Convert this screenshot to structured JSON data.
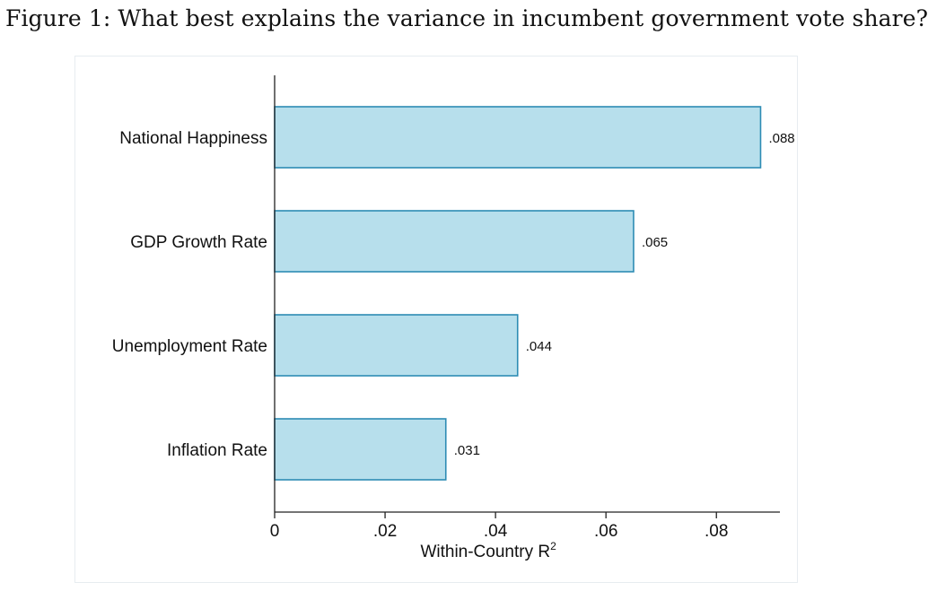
{
  "figure": {
    "title": "Figure 1: What best explains the variance in incumbent government vote share?"
  },
  "colors": {
    "bar_fill": "#b7dfec",
    "bar_stroke": "#2d8cb4",
    "axis": "#222222",
    "text": "#111111"
  },
  "chart_data": {
    "type": "bar",
    "orientation": "horizontal",
    "categories": [
      "National Happiness",
      "GDP Growth Rate",
      "Unemployment Rate",
      "Inflation Rate"
    ],
    "values": [
      0.088,
      0.065,
      0.044,
      0.031
    ],
    "data_labels": [
      ".088",
      ".065",
      ".044",
      ".031"
    ],
    "xlabel": "Within-Country R",
    "xlabel_superscript": "2",
    "ylabel": "",
    "xlim": [
      0,
      0.0915
    ],
    "xticks": [
      0,
      0.02,
      0.04,
      0.06,
      0.08
    ],
    "xtick_labels": [
      "0",
      ".02",
      ".04",
      ".06",
      ".08"
    ],
    "grid": false,
    "legend": "none"
  }
}
